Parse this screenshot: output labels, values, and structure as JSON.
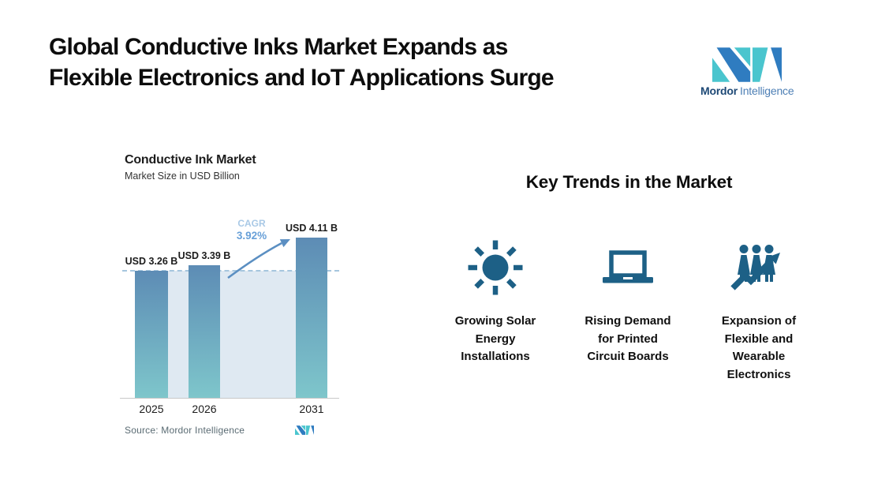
{
  "colors": {
    "icon": "#1d6086",
    "bar_top": "#5d8cb5",
    "bar_bottom": "#7ec6cb",
    "backdrop": "#dfe9f2",
    "dashed_line": "#a6c6de",
    "arrow": "#5b8fc2",
    "cagr_label": "#a9c9e6",
    "cagr_value": "#68a0d8",
    "axis_line": "#c8c8c8",
    "source_text": "#5a6b73",
    "logo_teal": "#4ac5ce",
    "logo_blue": "#2f7cc0",
    "brand_dark": "#1e4976",
    "brand_light": "#4d7fb5"
  },
  "header": {
    "title_lines": [
      "Global Conductive Inks Market Expands as",
      "Flexible Electronics and IoT Applications Surge"
    ],
    "brand_name_bold": "Mordor",
    "brand_name_light": "Intelligence"
  },
  "chart": {
    "title": "Conductive Ink Market",
    "subtitle": "Market Size in USD Billion",
    "cagr_label": "CAGR",
    "cagr_value": "3.92%",
    "source": "Source: Mordor Intelligence"
  },
  "chart_data": {
    "type": "bar",
    "title": "Conductive Ink Market",
    "subtitle": "Market Size in USD Billion",
    "unit": "USD Billion",
    "categories": [
      "2025",
      "2026",
      "2031"
    ],
    "values": [
      3.26,
      3.39,
      4.11
    ],
    "value_labels": [
      "USD 3.26 B",
      "USD 3.39 B",
      "USD 4.11 B"
    ],
    "cagr_percent": 3.92,
    "reference_line_value": 3.26,
    "ylim": [
      0,
      5.3
    ],
    "grid": false,
    "legend": null,
    "annotation": "CAGR 3.92% with growth arrow pointing from 2026 bar to 2031 bar"
  },
  "trends": {
    "heading": "Key Trends in the Market",
    "items": [
      {
        "icon": "sun-icon",
        "label": "Growing Solar Energy Installations",
        "lines": [
          "Growing Solar",
          "Energy",
          "Installations"
        ]
      },
      {
        "icon": "laptop-icon",
        "label": "Rising Demand for Printed Circuit Boards",
        "lines": [
          "Rising Demand",
          "for Printed",
          "Circuit Boards"
        ]
      },
      {
        "icon": "people-growth-icon",
        "label": "Expansion of Flexible and Wearable Electronics",
        "lines": [
          "Expansion of",
          "Flexible and",
          "Wearable",
          "Electronics"
        ]
      }
    ]
  }
}
